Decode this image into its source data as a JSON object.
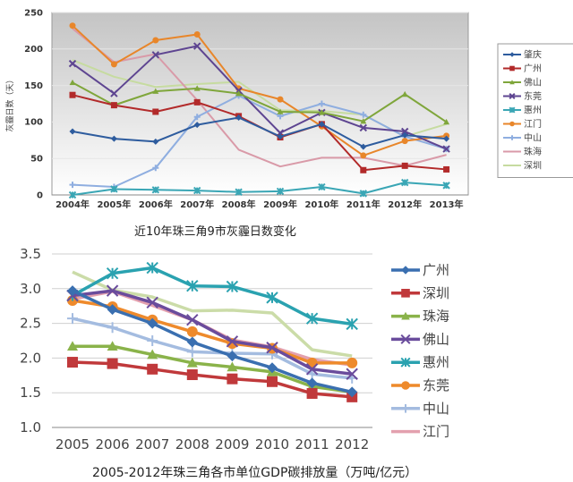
{
  "chart_data": [
    {
      "type": "line",
      "title": "近10年珠三角9市灰霾日数变化",
      "xlabel": "",
      "ylabel": "灰霾日数（天）",
      "categories": [
        "2004年",
        "2005年",
        "2006年",
        "2007年",
        "2008年",
        "2009年",
        "2010年",
        "2011年",
        "2012年",
        "2013年"
      ],
      "yticks": [
        "0",
        "50",
        "100",
        "150",
        "200",
        "250"
      ],
      "ylim": [
        0,
        250
      ],
      "grid": true,
      "legend": "right",
      "series": [
        {
          "name": "肇庆",
          "color": "#2e5c9e",
          "marker": "diamond",
          "values": [
            87,
            77,
            73,
            96,
            106,
            80,
            97,
            66,
            82,
            77
          ]
        },
        {
          "name": "广州",
          "color": "#b22a2a",
          "marker": "square",
          "values": [
            137,
            123,
            114,
            127,
            108,
            79,
            97,
            34,
            40,
            35
          ]
        },
        {
          "name": "佛山",
          "color": "#7fa63b",
          "marker": "triangle",
          "values": [
            154,
            123,
            142,
            146,
            139,
            114,
            113,
            101,
            138,
            100
          ]
        },
        {
          "name": "东莞",
          "color": "#5e4591",
          "marker": "x",
          "values": [
            180,
            139,
            192,
            204,
            143,
            85,
            113,
            92,
            87,
            63
          ]
        },
        {
          "name": "惠州",
          "color": "#3aa6b5",
          "marker": "star",
          "values": [
            0,
            8,
            7,
            6,
            4,
            5,
            11,
            2,
            17,
            13
          ]
        },
        {
          "name": "江门",
          "color": "#e8862a",
          "marker": "circle",
          "values": [
            232,
            179,
            212,
            220,
            146,
            131,
            94,
            54,
            74,
            81
          ]
        },
        {
          "name": "中山",
          "color": "#8faee0",
          "marker": "plus",
          "values": [
            14,
            11,
            37,
            107,
            136,
            108,
            125,
            110,
            80,
            63
          ]
        },
        {
          "name": "珠海",
          "color": "#d99aa8",
          "marker": "none",
          "values": [
            228,
            182,
            193,
            130,
            62,
            39,
            51,
            51,
            40,
            55
          ]
        },
        {
          "name": "深圳",
          "color": "#c6dba0",
          "marker": "none",
          "values": [
            185,
            162,
            148,
            152,
            155,
            116,
            115,
            110,
            80,
            97
          ]
        }
      ]
    },
    {
      "type": "line",
      "title": "2005-2012年珠三角各市单位GDP碳排放量（万吨/亿元）",
      "xlabel": "",
      "ylabel": "",
      "categories": [
        "2005",
        "2006",
        "2007",
        "2008",
        "2009",
        "2010",
        "2011",
        "2012"
      ],
      "yticks": [
        "1.0",
        "1.5",
        "2.0",
        "2.5",
        "3.0",
        "3.5"
      ],
      "ylim": [
        1.0,
        3.5
      ],
      "grid": true,
      "legend": "right",
      "series": [
        {
          "name": "广州",
          "color": "#3a6fb0",
          "marker": "diamond",
          "values": [
            2.97,
            2.7,
            2.5,
            2.23,
            2.03,
            1.86,
            1.64,
            1.51
          ]
        },
        {
          "name": "深圳",
          "color": "#c0393b",
          "marker": "square",
          "values": [
            1.94,
            1.92,
            1.84,
            1.76,
            1.7,
            1.66,
            1.49,
            1.44
          ]
        },
        {
          "name": "珠海",
          "color": "#8ab34a",
          "marker": "triangle",
          "values": [
            2.17,
            2.17,
            2.05,
            1.93,
            1.87,
            1.8,
            1.59,
            1.51
          ]
        },
        {
          "name": "佛山",
          "color": "#6a4c9c",
          "marker": "x",
          "values": [
            2.9,
            2.97,
            2.8,
            2.55,
            2.24,
            2.15,
            1.84,
            1.77
          ]
        },
        {
          "name": "惠州",
          "color": "#2aa2b0",
          "marker": "star",
          "values": [
            2.9,
            3.22,
            3.3,
            3.04,
            3.03,
            2.87,
            2.57,
            2.49
          ]
        },
        {
          "name": "东莞",
          "color": "#ee8a2c",
          "marker": "circle",
          "values": [
            2.83,
            2.74,
            2.55,
            2.38,
            2.21,
            2.14,
            1.93,
            1.93
          ]
        },
        {
          "name": "中山",
          "color": "#a4bce0",
          "marker": "plus",
          "values": [
            2.57,
            2.44,
            2.25,
            2.09,
            2.07,
            2.06,
            1.77,
            1.71
          ]
        },
        {
          "name": "江门",
          "color": "#e3a0ae",
          "marker": "none",
          "values": [
            2.85,
            2.96,
            2.76,
            2.55,
            2.26,
            2.16,
            1.98,
            1.9
          ]
        },
        {
          "name": "",
          "color": "#cbdca8",
          "marker": "none",
          "values": [
            3.24,
            2.98,
            2.88,
            2.68,
            2.69,
            2.65,
            2.12,
            2.03
          ]
        }
      ]
    }
  ]
}
